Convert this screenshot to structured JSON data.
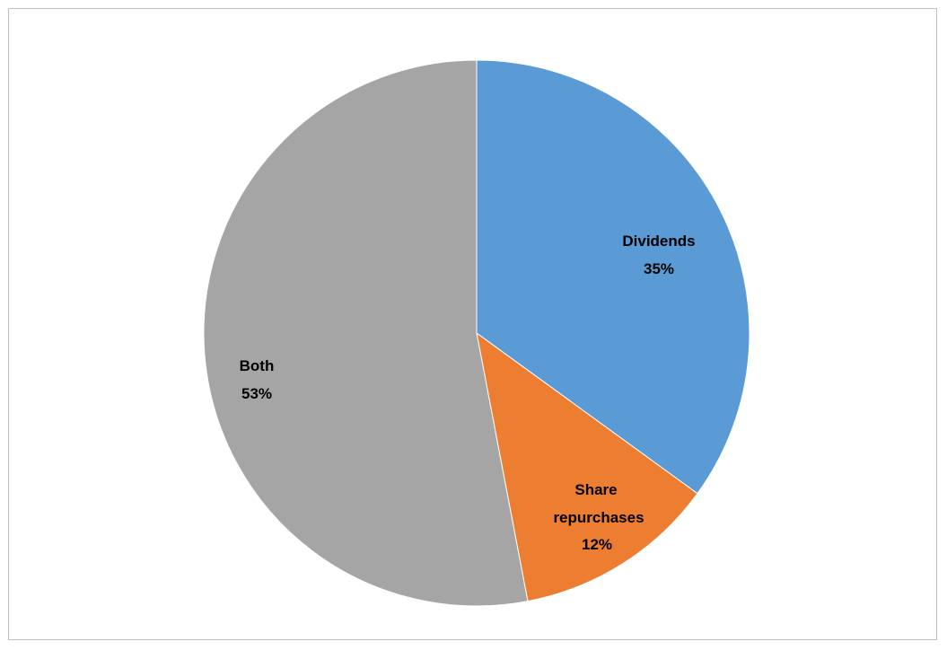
{
  "chart_data": {
    "type": "pie",
    "title": "",
    "slices": [
      {
        "label": "Dividends",
        "value": 35,
        "percent_label": "35%",
        "color": "#5b9bd5"
      },
      {
        "label": "Share repurchases",
        "label_lines": [
          "Share",
          "repurchases"
        ],
        "value": 12,
        "percent_label": "12%",
        "color": "#ed7d31"
      },
      {
        "label": "Both",
        "value": 53,
        "percent_label": "53%",
        "color": "#a5a5a5"
      }
    ],
    "start_angle_deg": 0,
    "direction": "clockwise",
    "legend": "none",
    "data_labels": "inside"
  }
}
